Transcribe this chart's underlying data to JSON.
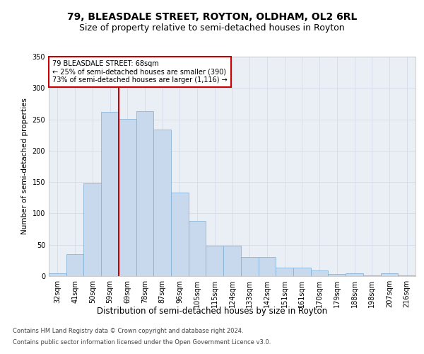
{
  "title": "79, BLEASDALE STREET, ROYTON, OLDHAM, OL2 6RL",
  "subtitle": "Size of property relative to semi-detached houses in Royton",
  "xlabel": "Distribution of semi-detached houses by size in Royton",
  "ylabel": "Number of semi-detached properties",
  "categories": [
    "32sqm",
    "41sqm",
    "50sqm",
    "59sqm",
    "69sqm",
    "78sqm",
    "87sqm",
    "96sqm",
    "105sqm",
    "115sqm",
    "124sqm",
    "133sqm",
    "142sqm",
    "151sqm",
    "161sqm",
    "170sqm",
    "179sqm",
    "188sqm",
    "198sqm",
    "207sqm",
    "216sqm"
  ],
  "values": [
    5,
    35,
    148,
    262,
    251,
    263,
    234,
    133,
    88,
    49,
    49,
    30,
    30,
    14,
    13,
    9,
    3,
    4,
    1,
    4,
    1
  ],
  "bar_color": "#c8d9ee",
  "bar_edge_color": "#7aadd4",
  "grid_color": "#d4dce8",
  "background_color": "#eaeef5",
  "annotation_text": "79 BLEASDALE STREET: 68sqm\n← 25% of semi-detached houses are smaller (390)\n73% of semi-detached houses are larger (1,116) →",
  "annotation_box_color": "#ffffff",
  "annotation_box_edge_color": "#cc0000",
  "vline_color": "#cc0000",
  "ylim": [
    0,
    350
  ],
  "yticks": [
    0,
    50,
    100,
    150,
    200,
    250,
    300,
    350
  ],
  "footer1": "Contains HM Land Registry data © Crown copyright and database right 2024.",
  "footer2": "Contains public sector information licensed under the Open Government Licence v3.0.",
  "title_fontsize": 10,
  "subtitle_fontsize": 9,
  "xlabel_fontsize": 8.5,
  "ylabel_fontsize": 7.5,
  "tick_fontsize": 7,
  "annotation_fontsize": 7,
  "footer_fontsize": 6
}
